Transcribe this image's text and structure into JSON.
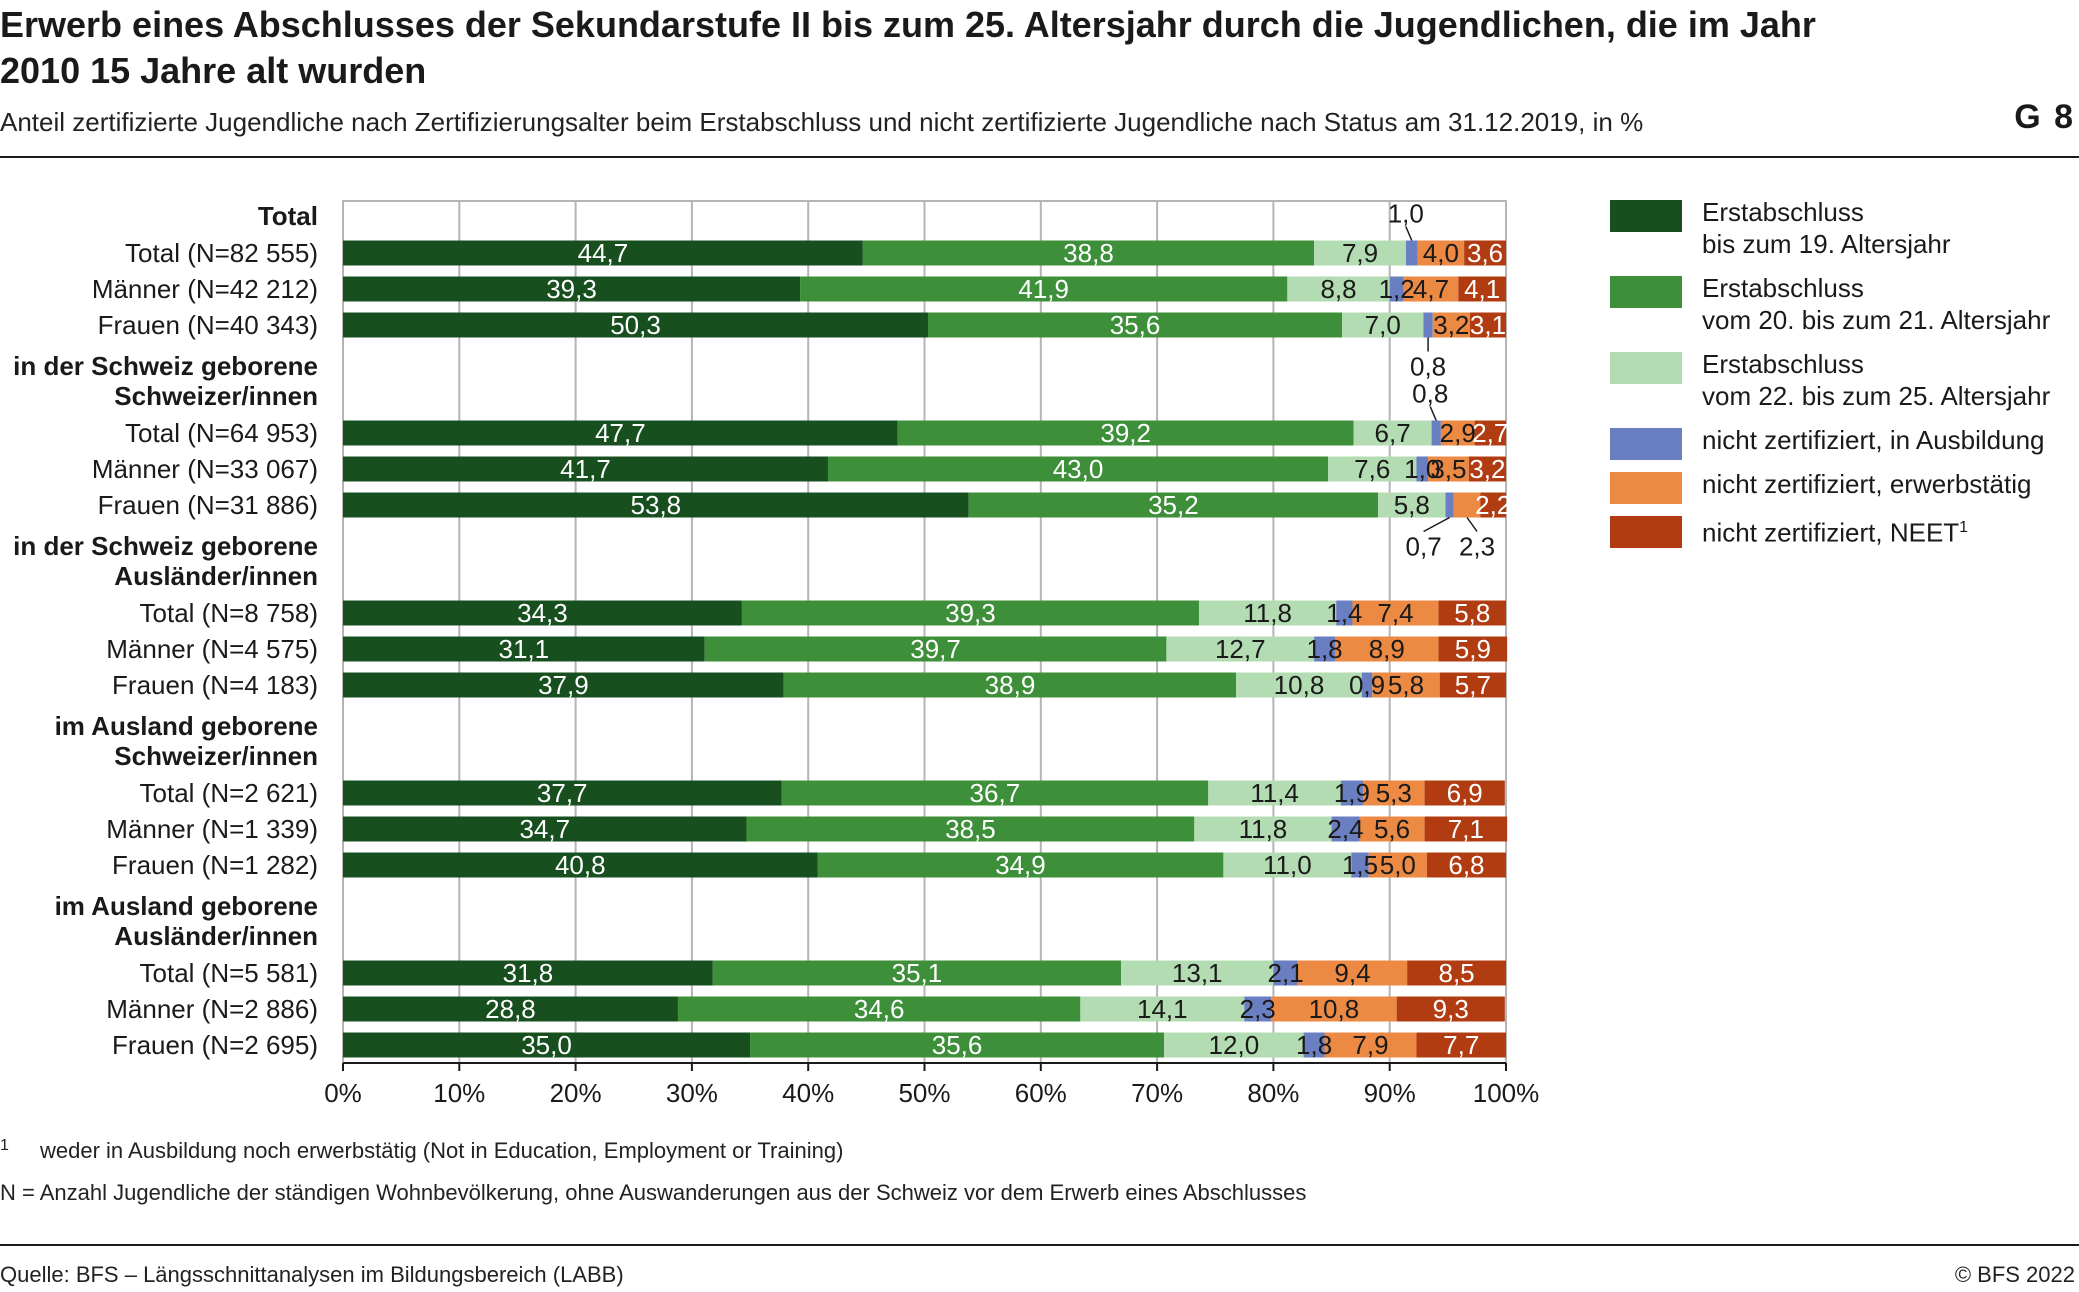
{
  "header": {
    "title": "Erwerb eines Abschlusses der Sekundarstufe II bis zum 25. Altersjahr durch die Jugendlichen, die im Jahr 2010 15 Jahre alt wurden",
    "subtitle": "Anteil zertifizierte Jugendliche nach Zertifizierungsalter beim Erstabschluss und nicht zertifizierte Jugendliche nach Status am 31.12.2019, in %",
    "graphic_number": "G 8"
  },
  "footer": {
    "footnote_mark": "1",
    "footnote": "weder in Ausbildung noch erwerbstätig (Not in Education, Employment or Training)",
    "note": "N = Anzahl Jugendliche der ständigen Wohnbevölkerung, ohne Auswanderungen aus der Schweiz vor dem Erwerb eines Abschlusses",
    "source": "Quelle: BFS – Längsschnittanalysen im Bildungsbereich (LABB)",
    "copyright": "© BFS 2022"
  },
  "chart_data": {
    "type": "bar",
    "orientation": "horizontal",
    "stacked": true,
    "xlim": [
      0,
      100
    ],
    "x_ticks": [
      "0%",
      "10%",
      "20%",
      "30%",
      "40%",
      "50%",
      "60%",
      "70%",
      "80%",
      "90%",
      "100%"
    ],
    "grid": "vertical",
    "legend_position": "right",
    "series": [
      {
        "name": "Erstabschluss\nbis zum 19. Altersjahr",
        "color": "#174f1f"
      },
      {
        "name": "Erstabschluss\nvom 20. bis zum 21. Altersjahr",
        "color": "#3d8f3a"
      },
      {
        "name": "Erstabschluss\nvom 22. bis zum 25. Altersjahr",
        "color": "#b3dcb2"
      },
      {
        "name": "nicht zertifiziert, in Ausbildung",
        "color": "#6a7fc2"
      },
      {
        "name": "nicht zertifiziert, erwerbstätig",
        "color": "#ec8a44"
      },
      {
        "name": "nicht zertifiziert, NEET",
        "color": "#b23c12"
      }
    ],
    "groups": [
      {
        "heading": [
          "Total"
        ],
        "rows": [
          {
            "label": "Total (N=82 555)",
            "values": [
              44.7,
              38.8,
              7.9,
              1.0,
              4.0,
              3.6
            ],
            "labels": [
              "44,7",
              "38,8",
              "7,9",
              "1,0",
              "4,0",
              "3,6"
            ]
          },
          {
            "label": "Männer (N=42 212)",
            "values": [
              39.3,
              41.9,
              8.8,
              1.2,
              4.7,
              4.1
            ],
            "labels": [
              "39,3",
              "41,9",
              "8,8",
              "1,2",
              "4,7",
              "4,1"
            ]
          },
          {
            "label": "Frauen (N=40 343)",
            "values": [
              50.3,
              35.6,
              7.0,
              0.8,
              3.2,
              3.1
            ],
            "labels": [
              "50,3",
              "35,6",
              "7,0",
              "0,8",
              "3,2",
              "3,1"
            ]
          }
        ]
      },
      {
        "heading": [
          "in der Schweiz geborene",
          "Schweizer/innen"
        ],
        "rows": [
          {
            "label": "Total (N=64 953)",
            "values": [
              47.7,
              39.2,
              6.7,
              0.8,
              2.9,
              2.7
            ],
            "labels": [
              "47,7",
              "39,2",
              "6,7",
              "0,8",
              "2,9",
              "2,7"
            ]
          },
          {
            "label": "Männer (N=33 067)",
            "values": [
              41.7,
              43.0,
              7.6,
              1.0,
              3.5,
              3.2
            ],
            "labels": [
              "41,7",
              "43,0",
              "7,6",
              "1,0",
              "3,5",
              "3,2"
            ]
          },
          {
            "label": "Frauen (N=31 886)",
            "values": [
              53.8,
              35.2,
              5.8,
              0.7,
              2.3,
              2.2
            ],
            "labels": [
              "53,8",
              "35,2",
              "5,8",
              "0,7",
              "2,3",
              "2,2"
            ]
          }
        ]
      },
      {
        "heading": [
          "in der Schweiz geborene",
          "Ausländer/innen"
        ],
        "rows": [
          {
            "label": "Total (N=8 758)",
            "values": [
              34.3,
              39.3,
              11.8,
              1.4,
              7.4,
              5.8
            ],
            "labels": [
              "34,3",
              "39,3",
              "11,8",
              "1,4",
              "7,4",
              "5,8"
            ]
          },
          {
            "label": "Männer (N=4 575)",
            "values": [
              31.1,
              39.7,
              12.7,
              1.8,
              8.9,
              5.9
            ],
            "labels": [
              "31,1",
              "39,7",
              "12,7",
              "1,8",
              "8,9",
              "5,9"
            ]
          },
          {
            "label": "Frauen (N=4 183)",
            "values": [
              37.9,
              38.9,
              10.8,
              0.9,
              5.8,
              5.7
            ],
            "labels": [
              "37,9",
              "38,9",
              "10,8",
              "0,9",
              "5,8",
              "5,7"
            ]
          }
        ]
      },
      {
        "heading": [
          "im Ausland geborene",
          "Schweizer/innen"
        ],
        "rows": [
          {
            "label": "Total (N=2 621)",
            "values": [
              37.7,
              36.7,
              11.4,
              1.9,
              5.3,
              6.9
            ],
            "labels": [
              "37,7",
              "36,7",
              "11,4",
              "1,9",
              "5,3",
              "6,9"
            ]
          },
          {
            "label": "Männer (N=1 339)",
            "values": [
              34.7,
              38.5,
              11.8,
              2.4,
              5.6,
              7.1
            ],
            "labels": [
              "34,7",
              "38,5",
              "11,8",
              "2,4",
              "5,6",
              "7,1"
            ]
          },
          {
            "label": "Frauen (N=1 282)",
            "values": [
              40.8,
              34.9,
              11.0,
              1.5,
              5.0,
              6.8
            ],
            "labels": [
              "40,8",
              "34,9",
              "11,0",
              "1,5",
              "5,0",
              "6,8"
            ]
          }
        ]
      },
      {
        "heading": [
          "im Ausland geborene",
          "Ausländer/innen"
        ],
        "rows": [
          {
            "label": "Total (N=5 581)",
            "values": [
              31.8,
              35.1,
              13.1,
              2.1,
              9.4,
              8.5
            ],
            "labels": [
              "31,8",
              "35,1",
              "13,1",
              "2,1",
              "9,4",
              "8,5"
            ]
          },
          {
            "label": "Männer (N=2 886)",
            "values": [
              28.8,
              34.6,
              14.1,
              2.3,
              10.8,
              9.3
            ],
            "labels": [
              "28,8",
              "34,6",
              "14,1",
              "2,3",
              "10,8",
              "9,3"
            ]
          },
          {
            "label": "Frauen (N=2 695)",
            "values": [
              35.0,
              35.6,
              12.0,
              1.8,
              7.9,
              7.7
            ],
            "labels": [
              "35,0",
              "35,6",
              "12,0",
              "1,8",
              "7,9",
              "7,7"
            ]
          }
        ]
      }
    ],
    "callouts": [
      {
        "row": "0.0",
        "segment": 3,
        "text": "1,0",
        "position": "above"
      },
      {
        "row": "0.2",
        "segment": 3,
        "text": "0,8",
        "position": "below"
      },
      {
        "row": "1.0",
        "segment": 3,
        "text": "0,8",
        "position": "above"
      },
      {
        "row": "1.2",
        "segment": 3,
        "text": "0,7",
        "position": "below"
      },
      {
        "row": "1.2",
        "segment": 4,
        "text": "2,3",
        "position": "below"
      }
    ]
  }
}
